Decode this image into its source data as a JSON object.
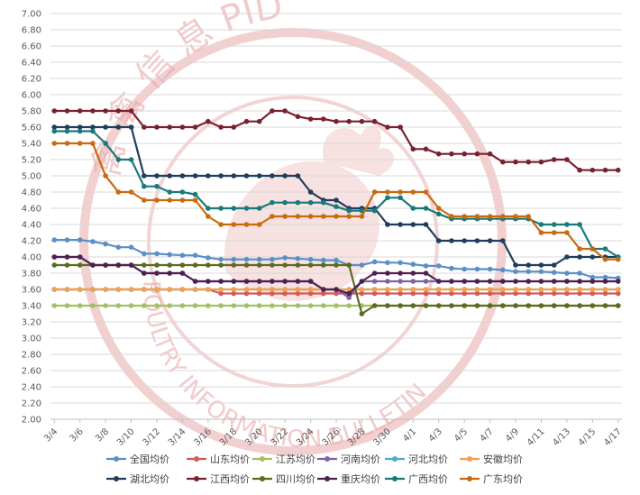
{
  "watermark": {
    "cn_text": "禽 禽 信 息 PID",
    "en_text": "POULTRY INFORMATION BULLETIN",
    "color": "#e8aaaa"
  },
  "chart_data": {
    "type": "line",
    "title": "",
    "xlabel": "",
    "ylabel": "",
    "ylim": [
      2.0,
      7.0
    ],
    "ytick_step": 0.2,
    "grid": "horizontal",
    "legend_position": "bottom",
    "x": [
      "3/4",
      "3/5",
      "3/6",
      "3/7",
      "3/8",
      "3/9",
      "3/10",
      "3/11",
      "3/12",
      "3/13",
      "3/14",
      "3/15",
      "3/16",
      "3/17",
      "3/18",
      "3/19",
      "3/20",
      "3/21",
      "3/22",
      "3/23",
      "3/24",
      "3/25",
      "3/26",
      "3/27",
      "3/28",
      "3/29",
      "3/30",
      "3/31",
      "4/1",
      "4/2",
      "4/3",
      "4/4",
      "4/5",
      "4/6",
      "4/7",
      "4/8",
      "4/9",
      "4/10",
      "4/11",
      "4/12",
      "4/13",
      "4/14",
      "4/15",
      "4/16",
      "4/17"
    ],
    "xtick_labels": [
      "3/4",
      "3/6",
      "3/8",
      "3/10",
      "3/12",
      "3/14",
      "3/16",
      "3/18",
      "3/20",
      "3/22",
      "3/24",
      "3/26",
      "3/28",
      "3/30",
      "4/1",
      "4/3",
      "4/5",
      "4/7",
      "4/9",
      "4/11",
      "4/13",
      "4/15",
      "4/17"
    ],
    "series": [
      {
        "name": "全国均价",
        "color": "#5b8fc7",
        "values": [
          4.21,
          4.21,
          4.21,
          4.19,
          4.16,
          4.12,
          4.12,
          4.04,
          4.04,
          4.03,
          4.02,
          4.02,
          3.99,
          3.97,
          3.97,
          3.97,
          3.97,
          3.97,
          3.99,
          3.98,
          3.97,
          3.96,
          3.96,
          3.9,
          3.9,
          3.94,
          3.93,
          3.93,
          3.91,
          3.89,
          3.89,
          3.86,
          3.85,
          3.85,
          3.85,
          3.84,
          3.82,
          3.82,
          3.82,
          3.81,
          3.8,
          3.8,
          3.75,
          3.75,
          3.74
        ]
      },
      {
        "name": "山东均价",
        "color": "#d25a5a",
        "values": [
          3.6,
          3.6,
          3.6,
          3.6,
          3.6,
          3.6,
          3.6,
          3.6,
          3.6,
          3.6,
          3.6,
          3.6,
          3.6,
          3.55,
          3.55,
          3.55,
          3.55,
          3.55,
          3.55,
          3.55,
          3.55,
          3.55,
          3.55,
          3.55,
          3.55,
          3.55,
          3.55,
          3.55,
          3.55,
          3.55,
          3.55,
          3.55,
          3.55,
          3.55,
          3.55,
          3.55,
          3.55,
          3.55,
          3.55,
          3.55,
          3.55,
          3.55,
          3.55,
          3.55,
          3.55
        ]
      },
      {
        "name": "江苏均价",
        "color": "#a4c066",
        "values": [
          3.4,
          3.4,
          3.4,
          3.4,
          3.4,
          3.4,
          3.4,
          3.4,
          3.4,
          3.4,
          3.4,
          3.4,
          3.4,
          3.4,
          3.4,
          3.4,
          3.4,
          3.4,
          3.4,
          3.4,
          3.4,
          3.4,
          3.4,
          3.4,
          3.4,
          3.4,
          3.4,
          3.4,
          3.4,
          3.4,
          3.4,
          3.4,
          3.4,
          3.4,
          3.4,
          3.4,
          3.4,
          3.4,
          3.4,
          3.4,
          3.4,
          3.4,
          3.4,
          3.4,
          3.4
        ]
      },
      {
        "name": "河南均价",
        "color": "#8064a2",
        "values": [
          4.0,
          4.0,
          4.0,
          3.9,
          3.9,
          3.9,
          3.9,
          3.8,
          3.8,
          3.8,
          3.8,
          3.7,
          3.7,
          3.7,
          3.7,
          3.7,
          3.7,
          3.7,
          3.7,
          3.7,
          3.7,
          3.6,
          3.6,
          3.5,
          3.7,
          3.7,
          3.7,
          3.7,
          3.7,
          3.7,
          3.7,
          3.7,
          3.7,
          3.7,
          3.7,
          3.7,
          3.7,
          3.7,
          3.7,
          3.7,
          3.7,
          3.7,
          3.7,
          3.7,
          3.7
        ]
      },
      {
        "name": "河北均价",
        "color": "#4bacc6",
        "values": [
          3.6,
          3.6,
          3.6,
          3.6,
          3.6,
          3.6,
          3.6,
          3.6,
          3.6,
          3.6,
          3.6,
          3.6,
          3.6,
          3.6,
          3.6,
          3.6,
          3.6,
          3.6,
          3.6,
          3.6,
          3.6,
          3.6,
          3.6,
          3.6,
          3.6,
          3.6,
          3.6,
          3.6,
          3.6,
          3.6,
          3.6,
          3.6,
          3.6,
          3.6,
          3.6,
          3.6,
          3.6,
          3.6,
          3.6,
          3.6,
          3.6,
          3.6,
          3.6,
          3.6,
          3.6
        ]
      },
      {
        "name": "安徽均价",
        "color": "#f0a050",
        "values": [
          3.6,
          3.6,
          3.6,
          3.6,
          3.6,
          3.6,
          3.6,
          3.6,
          3.6,
          3.6,
          3.6,
          3.6,
          3.6,
          3.6,
          3.6,
          3.6,
          3.6,
          3.6,
          3.6,
          3.6,
          3.6,
          3.6,
          3.6,
          3.6,
          3.6,
          3.6,
          3.6,
          3.6,
          3.6,
          3.6,
          3.6,
          3.6,
          3.6,
          3.6,
          3.6,
          3.6,
          3.6,
          3.6,
          3.6,
          3.6,
          3.6,
          3.6,
          3.6,
          3.6,
          3.6
        ]
      },
      {
        "name": "湖北均价",
        "color": "#1f3d5c",
        "values": [
          5.6,
          5.6,
          5.6,
          5.6,
          5.6,
          5.6,
          5.6,
          5.0,
          5.0,
          5.0,
          5.0,
          5.0,
          5.0,
          5.0,
          5.0,
          5.0,
          5.0,
          5.0,
          5.0,
          5.0,
          4.8,
          4.7,
          4.7,
          4.6,
          4.6,
          4.6,
          4.4,
          4.4,
          4.4,
          4.4,
          4.2,
          4.2,
          4.2,
          4.2,
          4.2,
          4.2,
          3.9,
          3.9,
          3.9,
          3.9,
          4.0,
          4.0,
          4.0,
          4.0,
          4.0
        ]
      },
      {
        "name": "江西均价",
        "color": "#7a2030",
        "values": [
          5.8,
          5.8,
          5.8,
          5.8,
          5.8,
          5.8,
          5.8,
          5.6,
          5.6,
          5.6,
          5.6,
          5.6,
          5.67,
          5.6,
          5.6,
          5.67,
          5.67,
          5.8,
          5.8,
          5.73,
          5.7,
          5.7,
          5.67,
          5.67,
          5.67,
          5.67,
          5.6,
          5.6,
          5.33,
          5.33,
          5.27,
          5.27,
          5.27,
          5.27,
          5.27,
          5.17,
          5.17,
          5.17,
          5.17,
          5.2,
          5.2,
          5.07,
          5.07,
          5.07,
          5.07
        ]
      },
      {
        "name": "四川均价",
        "color": "#5b6b20",
        "values": [
          3.9,
          3.9,
          3.9,
          3.9,
          3.9,
          3.9,
          3.9,
          3.9,
          3.9,
          3.9,
          3.9,
          3.9,
          3.9,
          3.9,
          3.9,
          3.9,
          3.9,
          3.9,
          3.9,
          3.9,
          3.9,
          3.9,
          3.9,
          3.9,
          3.3,
          3.4,
          3.4,
          3.4,
          3.4,
          3.4,
          3.4,
          3.4,
          3.4,
          3.4,
          3.4,
          3.4,
          3.4,
          3.4,
          3.4,
          3.4,
          3.4,
          3.4,
          3.4,
          3.4,
          3.4
        ]
      },
      {
        "name": "重庆均价",
        "color": "#4e2050",
        "values": [
          4.0,
          4.0,
          4.0,
          3.9,
          3.9,
          3.9,
          3.9,
          3.8,
          3.8,
          3.8,
          3.8,
          3.7,
          3.7,
          3.7,
          3.7,
          3.7,
          3.7,
          3.7,
          3.7,
          3.7,
          3.7,
          3.6,
          3.6,
          3.55,
          3.7,
          3.8,
          3.8,
          3.8,
          3.8,
          3.8,
          3.7,
          3.7,
          3.7,
          3.7,
          3.7,
          3.7,
          3.7,
          3.7,
          3.7,
          3.7,
          3.7,
          3.7,
          3.7,
          3.7,
          3.7
        ]
      },
      {
        "name": "广西均价",
        "color": "#1a7a7a",
        "values": [
          5.55,
          5.55,
          5.55,
          5.55,
          5.4,
          5.2,
          5.2,
          4.87,
          4.87,
          4.8,
          4.8,
          4.77,
          4.6,
          4.6,
          4.6,
          4.6,
          4.6,
          4.67,
          4.67,
          4.67,
          4.67,
          4.67,
          4.62,
          4.57,
          4.57,
          4.57,
          4.73,
          4.73,
          4.6,
          4.6,
          4.53,
          4.47,
          4.47,
          4.47,
          4.47,
          4.47,
          4.47,
          4.47,
          4.4,
          4.4,
          4.4,
          4.4,
          4.1,
          4.1,
          4.0
        ]
      },
      {
        "name": "广东均价",
        "color": "#c86a10",
        "values": [
          5.4,
          5.4,
          5.4,
          5.4,
          5.0,
          4.8,
          4.8,
          4.7,
          4.7,
          4.7,
          4.7,
          4.7,
          4.5,
          4.4,
          4.4,
          4.4,
          4.4,
          4.5,
          4.5,
          4.5,
          4.5,
          4.5,
          4.5,
          4.5,
          4.5,
          4.8,
          4.8,
          4.8,
          4.8,
          4.8,
          4.6,
          4.5,
          4.5,
          4.5,
          4.5,
          4.5,
          4.5,
          4.5,
          4.3,
          4.3,
          4.3,
          4.1,
          4.1,
          3.97,
          3.97
        ]
      }
    ]
  }
}
